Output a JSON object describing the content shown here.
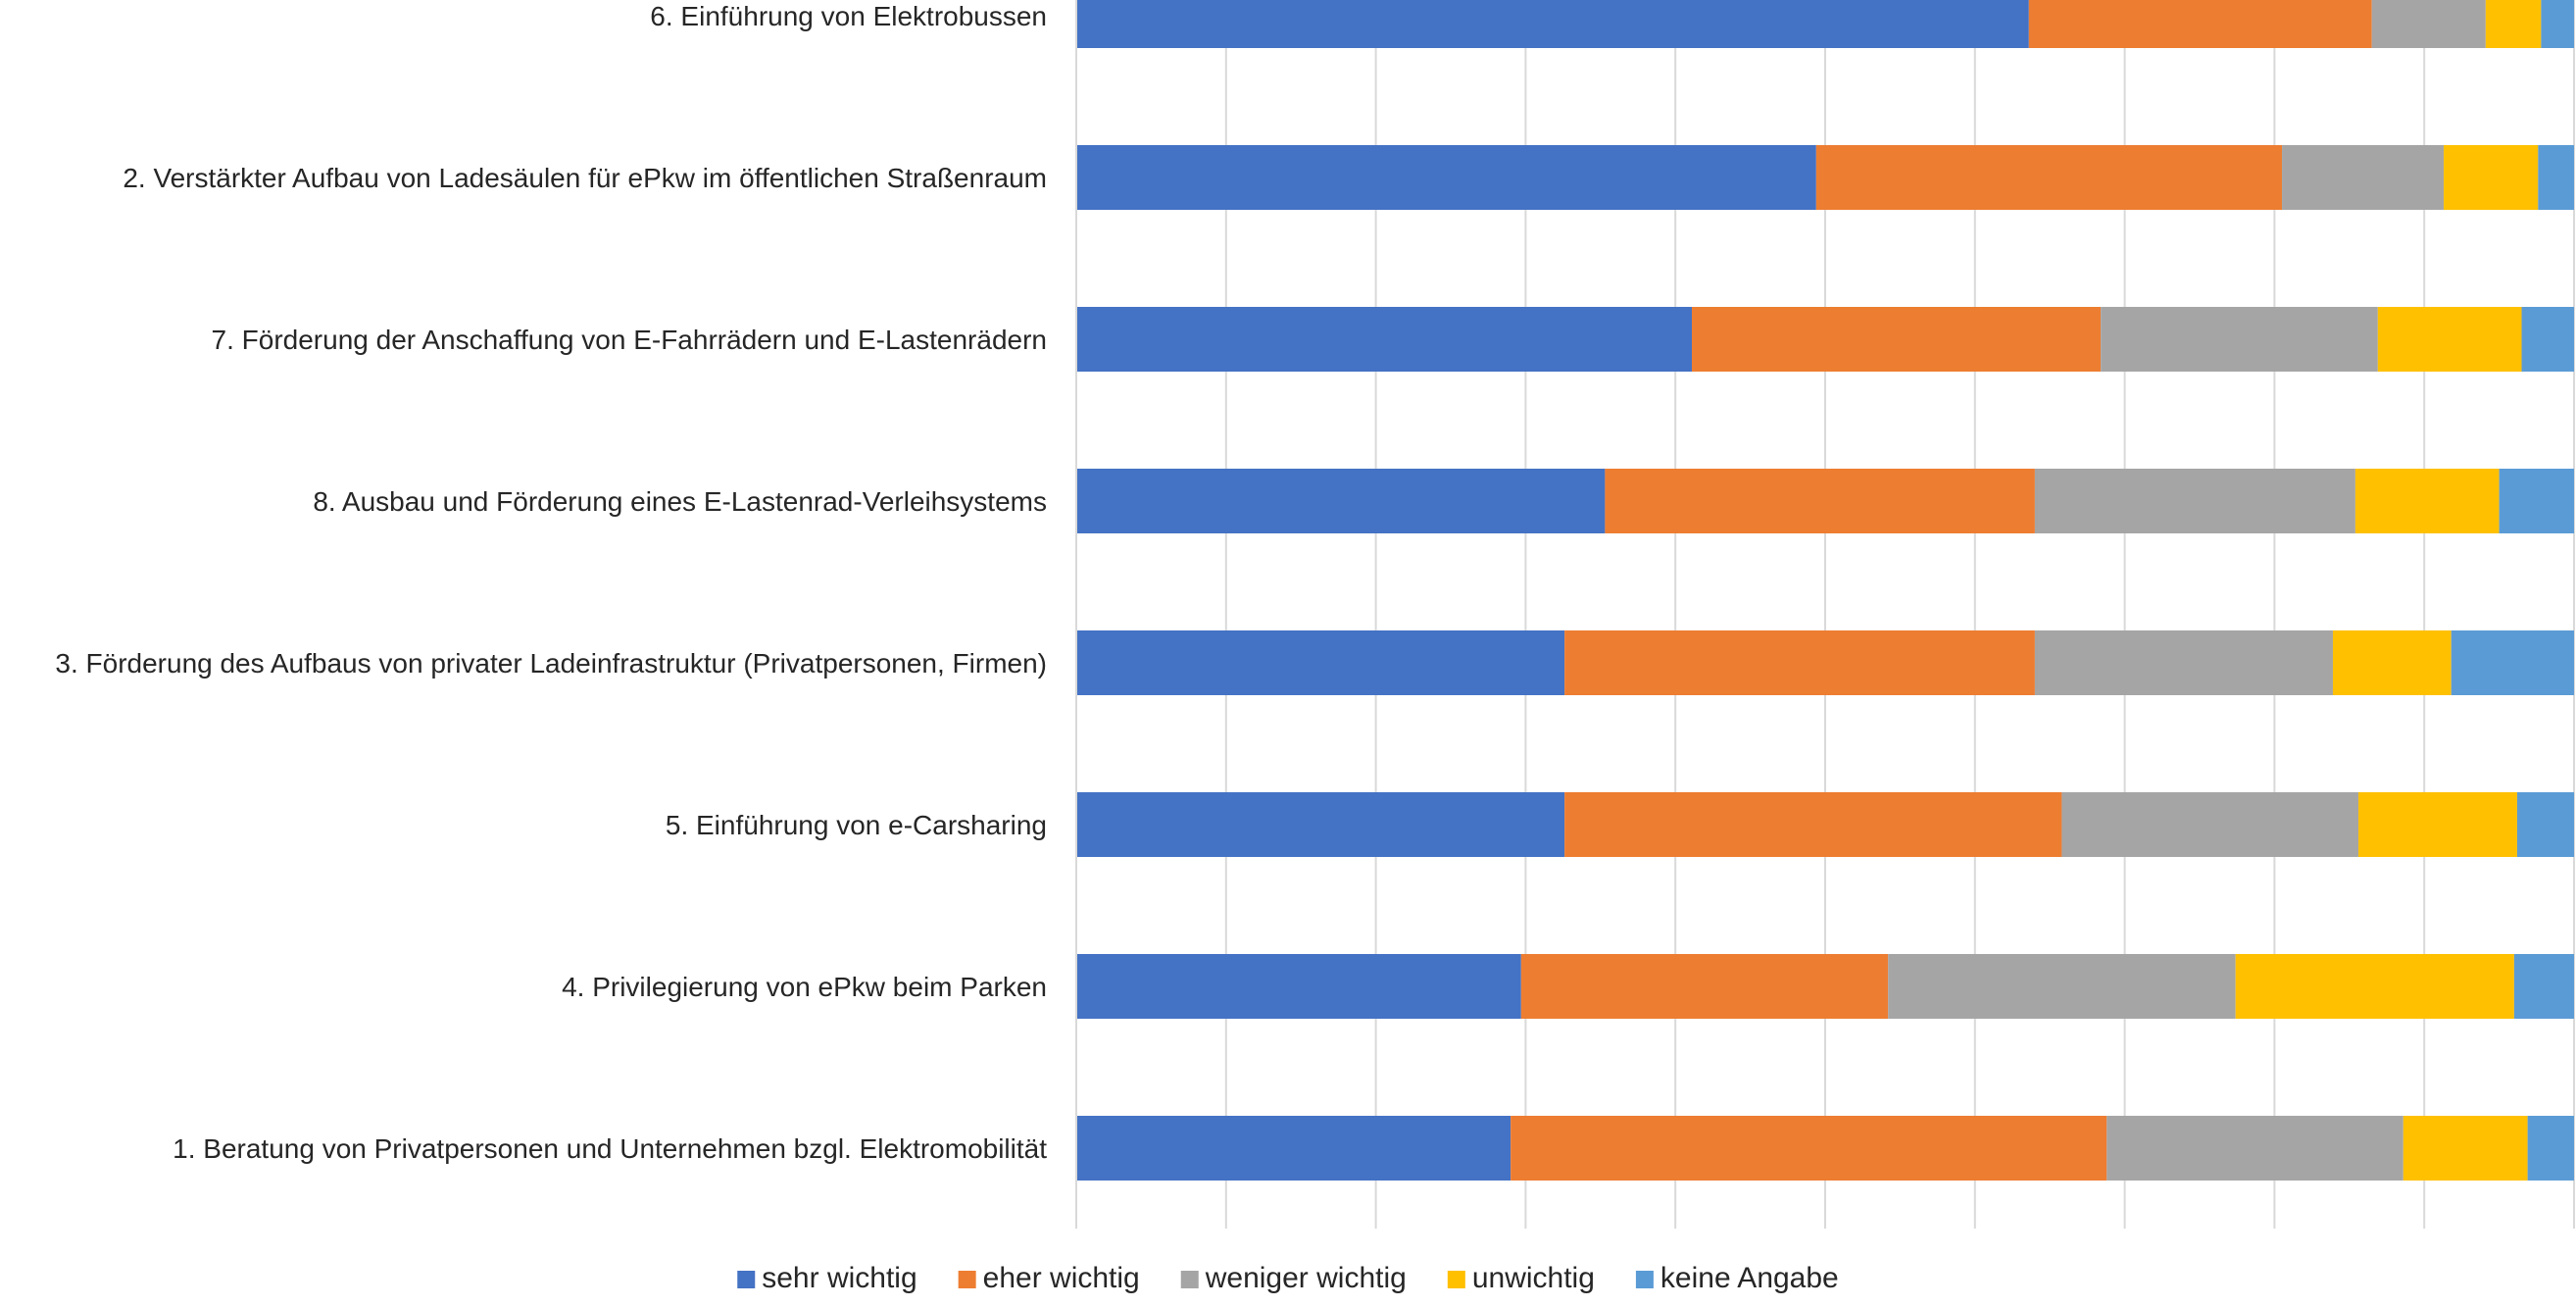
{
  "chart_data": {
    "type": "bar",
    "orientation": "horizontal",
    "stacked": "percent",
    "categories": [
      "6. Einführung von Elektrobussen",
      "2. Verstärkter Aufbau von Ladesäulen für ePkw im öffentlichen Straßenraum",
      "7. Förderung der Anschaffung von E-Fahrrädern und E-Lastenrädern",
      "8. Ausbau und Förderung eines E-Lastenrad-Verleihsystems",
      "3. Förderung des Aufbaus von privater Ladeinfrastruktur (Privatpersonen, Firmen)",
      "5. Einführung von e-Carsharing",
      "4. Privilegierung von ePkw beim Parken",
      "1. Beratung von Privatpersonen und Unternehmen bzgl. Elektromobilität"
    ],
    "series": [
      {
        "name": "sehr wichtig",
        "color": "#4472C4",
        "values": [
          63.6,
          49.4,
          41.1,
          35.3,
          32.6,
          32.6,
          29.7,
          29.0
        ]
      },
      {
        "name": "eher wichtig",
        "color": "#ED7D31",
        "values": [
          22.9,
          31.1,
          27.3,
          28.7,
          31.4,
          33.2,
          24.5,
          39.8
        ]
      },
      {
        "name": "weniger wichtig",
        "color": "#A5A5A5",
        "values": [
          7.6,
          10.8,
          18.5,
          21.4,
          19.9,
          19.8,
          23.2,
          19.8
        ]
      },
      {
        "name": "unwichtig",
        "color": "#FFC000",
        "values": [
          3.7,
          6.3,
          9.6,
          9.6,
          7.9,
          10.6,
          18.6,
          8.3
        ]
      },
      {
        "name": "keine Angabe",
        "color": "#5B9BD5",
        "values": [
          2.2,
          2.4,
          3.5,
          5.0,
          8.2,
          3.8,
          4.0,
          3.1
        ]
      }
    ],
    "xlim": [
      0,
      100
    ],
    "grid": true,
    "legend": "bottom",
    "title": "",
    "xlabel": "",
    "ylabel": ""
  }
}
